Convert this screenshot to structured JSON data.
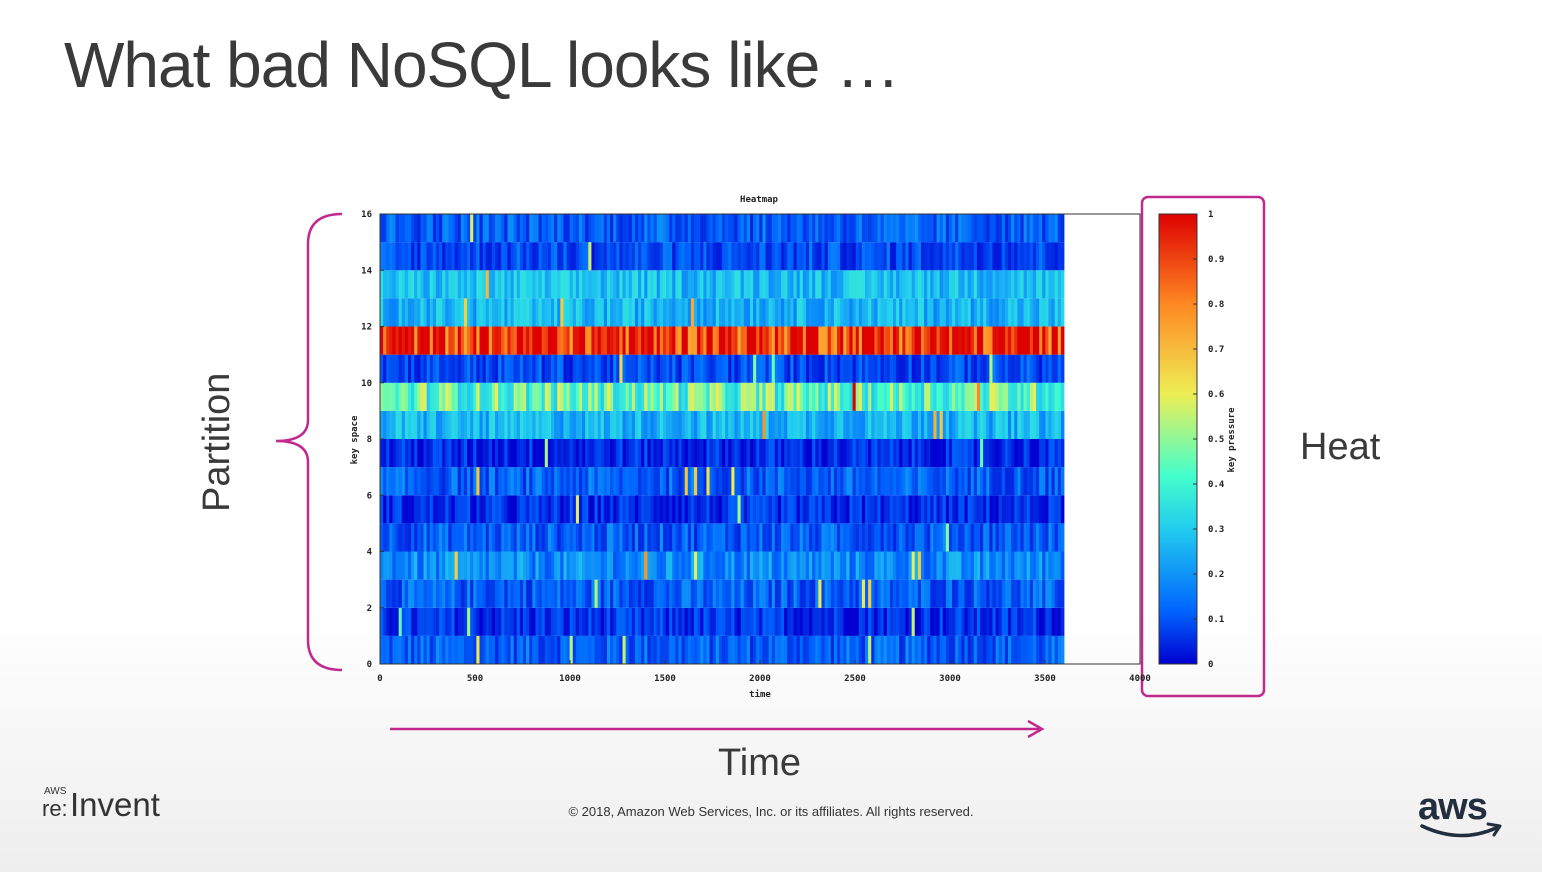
{
  "slide": {
    "title": "What bad NoSQL looks like …",
    "partition_label": "Partition",
    "heat_label": "Heat",
    "time_label": "Time",
    "copyright": "© 2018, Amazon Web Services, Inc. or its affiliates. All rights reserved.",
    "event_logo_small": "AWS",
    "event_logo_re": "re:",
    "event_logo_text": "Invent",
    "brand_logo": "aws",
    "annotation_color": "#c2298f"
  },
  "chart_data": {
    "type": "heatmap",
    "title": "Heatmap",
    "xlabel": "time",
    "ylabel": "key space",
    "colorbar_label": "key pressure",
    "xlim": [
      0,
      4000
    ],
    "ylim": [
      0,
      16
    ],
    "xticks": [
      "0",
      "500",
      "1000",
      "1500",
      "2000",
      "2500",
      "3000",
      "3500",
      "4000"
    ],
    "yticks": [
      "0",
      "2",
      "4",
      "6",
      "8",
      "10",
      "12",
      "14",
      "16"
    ],
    "colorbar_ticks": [
      "0",
      "0.1",
      "0.2",
      "0.3",
      "0.4",
      "0.5",
      "0.6",
      "0.7",
      "0.8",
      "0.9",
      "1"
    ],
    "color_range": [
      0,
      1
    ],
    "colormap": [
      "#0000d0",
      "#0066ff",
      "#22ccee",
      "#44ffcc",
      "#eeee55",
      "#ff8822",
      "#dd0000"
    ],
    "data_x_range": [
      0,
      3600
    ],
    "rows": [
      {
        "y": [
          0,
          1
        ],
        "mean_pressure": 0.15
      },
      {
        "y": [
          1,
          2
        ],
        "mean_pressure": 0.08
      },
      {
        "y": [
          2,
          3
        ],
        "mean_pressure": 0.15
      },
      {
        "y": [
          3,
          4
        ],
        "mean_pressure": 0.22
      },
      {
        "y": [
          4,
          5
        ],
        "mean_pressure": 0.15
      },
      {
        "y": [
          5,
          6
        ],
        "mean_pressure": 0.07
      },
      {
        "y": [
          6,
          7
        ],
        "mean_pressure": 0.15
      },
      {
        "y": [
          7,
          8
        ],
        "mean_pressure": 0.07
      },
      {
        "y": [
          8,
          9
        ],
        "mean_pressure": 0.3
      },
      {
        "y": [
          9,
          10
        ],
        "mean_pressure": 0.5
      },
      {
        "y": [
          10,
          11
        ],
        "mean_pressure": 0.12
      },
      {
        "y": [
          11,
          12
        ],
        "mean_pressure": 0.95
      },
      {
        "y": [
          12,
          13
        ],
        "mean_pressure": 0.3
      },
      {
        "y": [
          13,
          14
        ],
        "mean_pressure": 0.32
      },
      {
        "y": [
          14,
          15
        ],
        "mean_pressure": 0.12
      },
      {
        "y": [
          15,
          16
        ],
        "mean_pressure": 0.15
      }
    ]
  }
}
